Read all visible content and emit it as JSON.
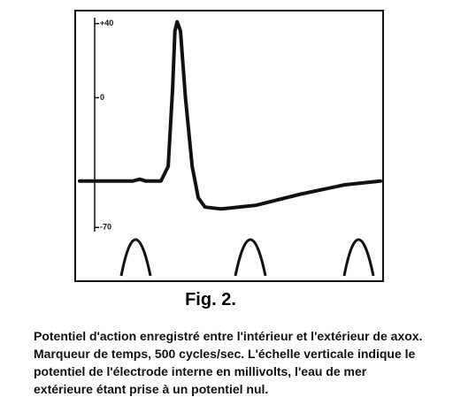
{
  "chart_data": {
    "type": "line",
    "x": [
      0,
      0.95,
      1.08,
      1.19,
      1.46,
      1.59,
      1.67,
      1.71,
      1.75,
      1.81,
      1.9,
      2.02,
      2.13,
      2.25,
      2.54,
      3.17,
      3.97,
      4.76,
      5.4
    ],
    "values": [
      -45,
      -45,
      -44,
      -45,
      -45,
      -37,
      5,
      36,
      41,
      36,
      0,
      -37,
      -54,
      -59,
      -60,
      -58,
      -52,
      -47,
      -45
    ],
    "color": "#111111",
    "xlim": [
      0,
      5.4
    ],
    "ylim": [
      -99,
      47
    ],
    "yticks": [
      {
        "value": 40,
        "label": "+40"
      },
      0,
      -70
    ]
  },
  "figure_label": "Fig. 2.",
  "caption": "Potentiel d'action enregistré entre l'intérieur et l'extérieur de axox. Marqueur de temps, 500 cycles/sec. L'échelle verticale indique le potentiel de l'électrode interne en millivolts, l'eau de mer extérieure étant prise à un potentiel nul."
}
